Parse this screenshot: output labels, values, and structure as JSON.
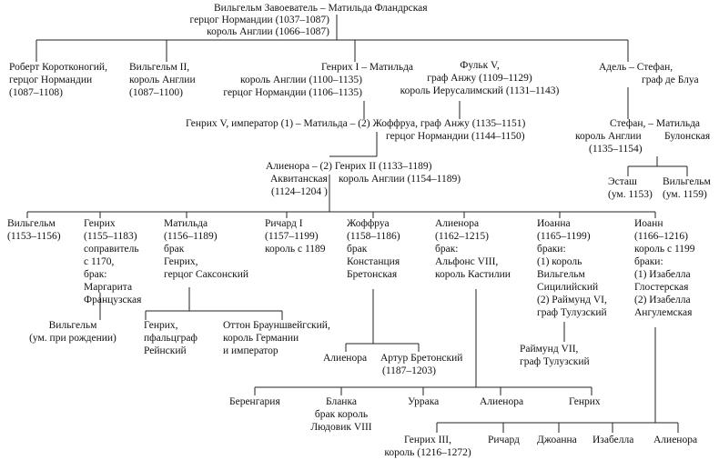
{
  "nodes": [
    {
      "lines": [
        "Вильгельм Завоеватель – Матильда Фландрская",
        "герцог Нормандии (1037–1087)",
        "король Англии (1066–1087)"
      ]
    },
    {
      "lines": [
        "Роберт Коротконогий,",
        "герцог Нормандии",
        "(1087–1108)"
      ]
    },
    {
      "lines": [
        "Вильгельм II,",
        "король Англии",
        "(1087–1100)"
      ]
    },
    {
      "lines": [
        "Генрих I – Матильда",
        "король Англии (1100–1135)",
        "герцог Нормандии (1106–1135)"
      ]
    },
    {
      "lines": [
        "Фульк V,",
        "граф Анжу (1109–1129)",
        "король Иерусалимский (1131–1143)"
      ]
    },
    {
      "lines": [
        "Адель – Стефан,",
        "граф де Блуа"
      ]
    },
    {
      "lines": [
        "Генрих V, император (1) – Матильда – (2) Жоффруа, граф Анжу (1135–1151)",
        "герцог Нормандии (1144–1150)"
      ]
    },
    {
      "lines": [
        "Стефан, – Матильда",
        "король Англии",
        "Булонская",
        "(1135–1154)"
      ]
    },
    {
      "lines": [
        "Алиенора – (2) Генрих II (1133–1189)",
        "Аквитанская",
        "король Англии (1154–1189)",
        "(1124–1204 )"
      ]
    },
    {
      "lines": [
        "Эсташ",
        "(ум. 1153)"
      ]
    },
    {
      "lines": [
        "Вильгельм",
        "(ум. 1159)"
      ]
    },
    {
      "lines": [
        "Вильгельм",
        "(1153–1156)"
      ]
    },
    {
      "lines": [
        "Генрих",
        "(1155–1183)",
        "соправитель",
        "с 1170,",
        "брак:",
        "Маргарита",
        "Французская"
      ]
    },
    {
      "lines": [
        "Матильда",
        "(1156–1189)",
        "брак",
        "Генрих,",
        "герцог Саксонский"
      ]
    },
    {
      "lines": [
        "Ричард I",
        "(1157–1199)",
        "король с 1189"
      ]
    },
    {
      "lines": [
        "Жоффруа",
        "(1158–1186)",
        "брак",
        "Констанция",
        "Бретонская"
      ]
    },
    {
      "lines": [
        "Алиенора",
        "(1162–1215)",
        "брак:",
        "Альфонс VIII,",
        "король Кастилии"
      ]
    },
    {
      "lines": [
        "Иоанна",
        "(1165–1199)",
        "браки:",
        "(1) король",
        "Вильгельм",
        "Сицилийский",
        "(2) Раймунд VI,",
        "граф Тулузский"
      ]
    },
    {
      "lines": [
        "Иоанн",
        "(1166–1216)",
        "король с 1199",
        "браки:",
        "(1) Изабелла",
        "Глостерская",
        "(2) Изабелла",
        "Ангулемская"
      ]
    },
    {
      "lines": [
        "Вильгельм",
        "(ум. при рождении)"
      ]
    },
    {
      "lines": [
        "Генрих,",
        "пфальцграф",
        "Рейнский"
      ]
    },
    {
      "lines": [
        "Оттон Брауншвейгский,",
        "король Германии",
        "и император"
      ]
    },
    {
      "lines": [
        "Раймунд VII,",
        "граф Тулузский"
      ]
    },
    {
      "lines": [
        "Алиенора"
      ]
    },
    {
      "lines": [
        "Артур Бретонский",
        "(1187–1203)"
      ]
    },
    {
      "lines": [
        "Беренгария"
      ]
    },
    {
      "lines": [
        "Бланка",
        "брак король",
        "Людовик VIII"
      ]
    },
    {
      "lines": [
        "Уррака"
      ]
    },
    {
      "lines": [
        "Алиенора"
      ]
    },
    {
      "lines": [
        "Генрих"
      ]
    },
    {
      "lines": [
        "Генрих III,",
        "король (1216–1272)"
      ]
    },
    {
      "lines": [
        "Ричард"
      ]
    },
    {
      "lines": [
        "Джоанна"
      ]
    },
    {
      "lines": [
        "Изабелла"
      ]
    },
    {
      "lines": [
        "Алиенора"
      ]
    }
  ]
}
